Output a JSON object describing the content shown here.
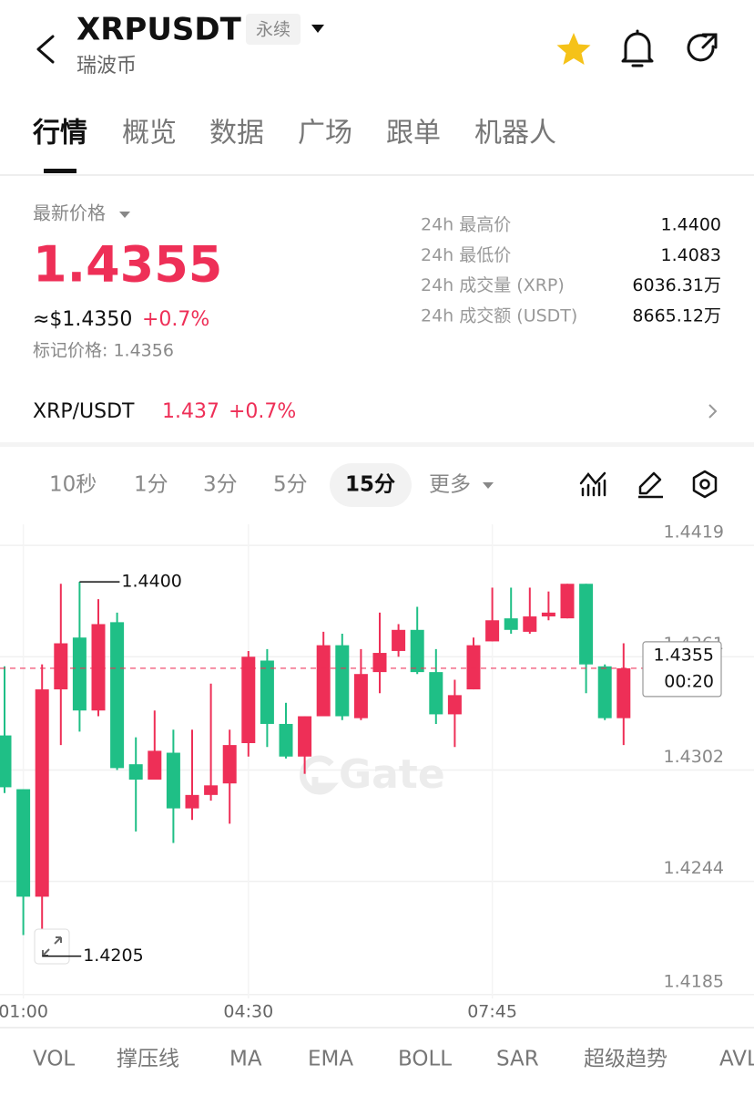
{
  "header": {
    "title": "XRPUSDT",
    "badge": "永续",
    "subtitle": "瑞波币"
  },
  "tabs": [
    "行情",
    "概览",
    "数据",
    "广场",
    "跟单",
    "机器人"
  ],
  "price": {
    "label": "最新价格",
    "value": "1.4355",
    "usd": "≈$1.4350",
    "change": "+0.7%",
    "mark": "标记价格: 1.4356"
  },
  "stats": [
    {
      "label": "24h 最高价",
      "value": "1.4400"
    },
    {
      "label": "24h 最低价",
      "value": "1.4083"
    },
    {
      "label": "24h 成交量 (XRP)",
      "value": "6036.31万"
    },
    {
      "label": "24h 成交额 (USDT)",
      "value": "8665.12万"
    }
  ],
  "spot": {
    "pair": "XRP/USDT",
    "price": "1.437",
    "change": "+0.7%"
  },
  "intervals": [
    "10秒",
    "1分",
    "3分",
    "5分",
    "15分",
    "更多"
  ],
  "indicators": [
    "VOL",
    "撑压线",
    "MA",
    "EMA",
    "BOLL",
    "SAR",
    "超级趋势",
    "AVL"
  ],
  "chart_data": {
    "type": "candlestick",
    "up_color": "#ee2f57",
    "down_color": "#1fbf86",
    "categories": [
      null,
      "01:00",
      null,
      null,
      null,
      null,
      null,
      null,
      null,
      null,
      null,
      null,
      null,
      "04:30",
      null,
      null,
      null,
      null,
      null,
      null,
      null,
      null,
      null,
      null,
      null,
      null,
      "07:45",
      null,
      null,
      null,
      null,
      null,
      null,
      null
    ],
    "open": [
      1.432,
      1.4292,
      1.4236,
      1.4344,
      1.4371,
      1.4333,
      1.4379,
      1.4305,
      1.4297,
      1.4311,
      1.4282,
      1.4289,
      1.4295,
      1.4316,
      1.4359,
      1.4326,
      1.4309,
      1.433,
      1.4367,
      1.4329,
      1.4353,
      1.4364,
      1.4375,
      1.4353,
      1.4331,
      1.4344,
      1.4369,
      1.4381,
      1.4374,
      1.4382,
      1.4381,
      1.4399,
      1.4356,
      1.4329
    ],
    "high": [
      1.4356,
      1.4292,
      1.4357,
      1.4399,
      1.44,
      1.4391,
      1.4384,
      1.4319,
      1.4333,
      1.4323,
      1.4323,
      1.4347,
      1.4323,
      1.4364,
      1.4365,
      1.4337,
      1.433,
      1.4374,
      1.4373,
      1.4365,
      1.4384,
      1.4378,
      1.4387,
      1.4365,
      1.4349,
      1.4371,
      1.4397,
      1.4397,
      1.4397,
      1.4395,
      1.4399,
      1.4399,
      1.4357,
      1.4368
    ],
    "low": [
      1.429,
      1.4216,
      1.4205,
      1.4315,
      1.4322,
      1.433,
      1.4302,
      1.427,
      1.4297,
      1.4264,
      1.4276,
      1.4286,
      1.4274,
      1.4309,
      1.4314,
      1.4308,
      1.43,
      1.433,
      1.4328,
      1.4328,
      1.4342,
      1.4361,
      1.4352,
      1.4326,
      1.4314,
      1.4344,
      1.4369,
      1.4373,
      1.4373,
      1.438,
      1.4381,
      1.4342,
      1.4328,
      1.4315
    ],
    "close": [
      1.4293,
      1.4236,
      1.4344,
      1.4368,
      1.4333,
      1.4378,
      1.4303,
      1.4297,
      1.4312,
      1.4282,
      1.4289,
      1.4294,
      1.4315,
      1.4361,
      1.4326,
      1.4309,
      1.433,
      1.4367,
      1.433,
      1.4352,
      1.4363,
      1.4375,
      1.4353,
      1.4331,
      1.4341,
      1.4367,
      1.438,
      1.4375,
      1.4382,
      1.4384,
      1.4399,
      1.4357,
      1.4329,
      1.4355
    ],
    "ylim": [
      1.4183,
      1.443
    ],
    "yticks": [
      1.4419,
      1.4361,
      1.4302,
      1.4244,
      1.4185
    ],
    "grid": true,
    "annotations": {
      "high": "1.4400",
      "low": "1.4205"
    },
    "price_tag": "1.4355",
    "countdown": "00:20",
    "watermark": "Gate"
  }
}
